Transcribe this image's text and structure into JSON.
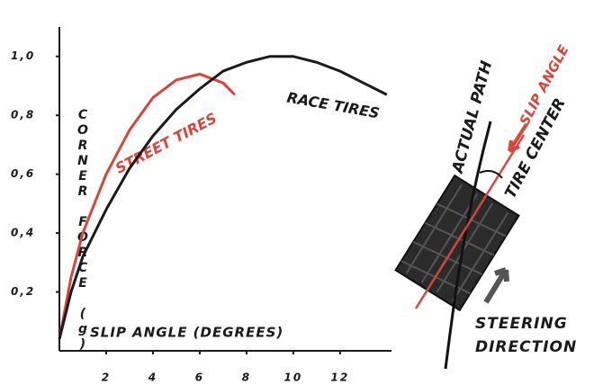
{
  "chart_data": {
    "type": "line",
    "ylabel": "CORNER FORCE (g)",
    "xlabel": "SLIP ANGLE (DEGREES)",
    "series": [
      {
        "name": "STREET TIRES",
        "color": "#d8453a",
        "x": [
          0,
          0.5,
          1,
          2,
          3,
          4,
          5,
          6,
          7,
          7.5
        ],
        "values": [
          0.04,
          0.25,
          0.4,
          0.6,
          0.75,
          0.86,
          0.92,
          0.94,
          0.91,
          0.87
        ]
      },
      {
        "name": "RACE TIRES",
        "color": "#1a1a1a",
        "x": [
          0,
          0.5,
          1,
          2,
          3,
          4,
          5,
          6,
          7,
          8,
          9,
          10,
          11,
          12,
          13,
          14
        ],
        "values": [
          0.04,
          0.2,
          0.32,
          0.48,
          0.62,
          0.73,
          0.82,
          0.89,
          0.95,
          0.98,
          1.0,
          1.0,
          0.98,
          0.95,
          0.91,
          0.87
        ]
      }
    ],
    "xlim": [
      0,
      14.2
    ],
    "ylim": [
      0,
      1.1
    ],
    "xticks": [
      2,
      4,
      6,
      8,
      10,
      12
    ],
    "yticks": [
      {
        "value": 0.2,
        "label": "0,2"
      },
      {
        "value": 0.4,
        "label": "0,4"
      },
      {
        "value": 0.6,
        "label": "0,6"
      },
      {
        "value": 0.8,
        "label": "0,8"
      },
      {
        "value": 1.0,
        "label": "1,0"
      }
    ]
  },
  "diagram": {
    "actual_path": "ACTUAL PATH",
    "slip_angle": "SLIP ANGLE",
    "tire_center": "TIRE CENTER",
    "steering": "STEERING",
    "direction": "DIRECTION"
  }
}
